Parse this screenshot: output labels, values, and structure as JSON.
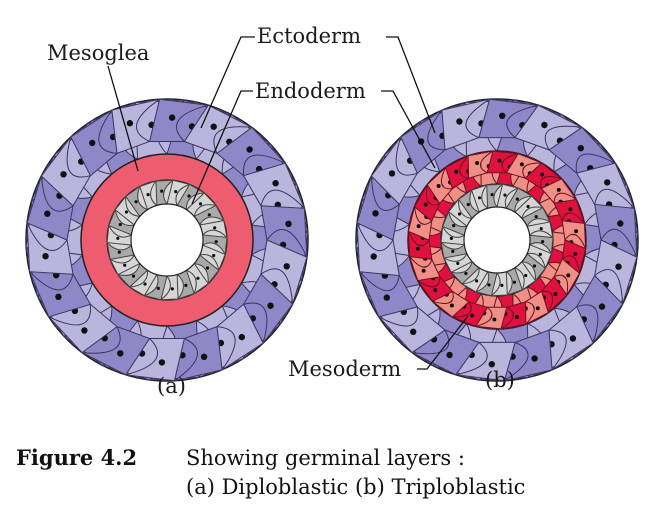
{
  "labels": {
    "mesoglea": "Mesoglea",
    "ectoderm": "Ectoderm",
    "endoderm": "Endoderm",
    "mesoderm": "Mesoderm",
    "sub_a": "(a)",
    "sub_b": "(b)"
  },
  "caption": {
    "number": "Figure 4.2",
    "line1": "Showing germinal layers :",
    "line2": "(a) Diploblastic (b) Triploblastic"
  },
  "colors": {
    "ectoderm_fill_light": "#b9b5dc",
    "ectoderm_fill_dark": "#8e88c8",
    "mesoglea_fill": "#ee5c6f",
    "endoderm_fill": "#d6d6d6",
    "endoderm_dark": "#a9a9a9",
    "mesoderm_dark": "#e0103f",
    "mesoderm_light": "#f08f85",
    "nucleus": "#111111"
  }
}
